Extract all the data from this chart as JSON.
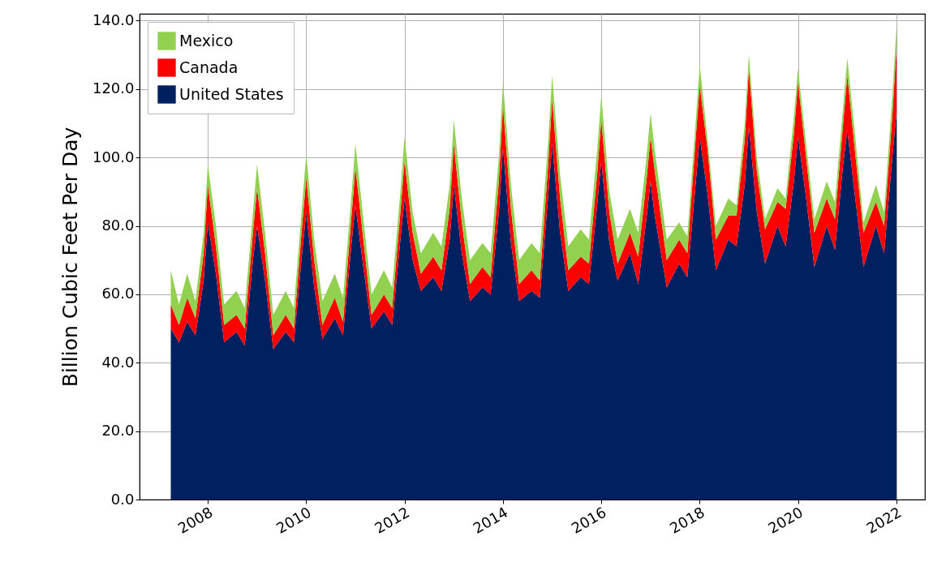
{
  "chart_data": {
    "type": "area",
    "stacked": true,
    "ylabel": "Billion Cubic Feet Per Day",
    "x": [
      "2007-04",
      "2007-06",
      "2007-08",
      "2007-10",
      "2007-12",
      "2008-01",
      "2008-03",
      "2008-05",
      "2008-08",
      "2008-10",
      "2008-12",
      "2009-01",
      "2009-03",
      "2009-05",
      "2009-08",
      "2009-10",
      "2009-12",
      "2010-01",
      "2010-03",
      "2010-05",
      "2010-08",
      "2010-10",
      "2010-12",
      "2011-01",
      "2011-03",
      "2011-05",
      "2011-08",
      "2011-10",
      "2011-12",
      "2012-01",
      "2012-03",
      "2012-05",
      "2012-08",
      "2012-10",
      "2012-12",
      "2013-01",
      "2013-03",
      "2013-05",
      "2013-08",
      "2013-10",
      "2013-12",
      "2014-01",
      "2014-03",
      "2014-05",
      "2014-08",
      "2014-10",
      "2014-12",
      "2015-01",
      "2015-03",
      "2015-05",
      "2015-08",
      "2015-10",
      "2015-12",
      "2016-01",
      "2016-03",
      "2016-05",
      "2016-08",
      "2016-10",
      "2016-12",
      "2017-01",
      "2017-02",
      "2017-05",
      "2017-08",
      "2017-10",
      "2017-12",
      "2018-01",
      "2018-03",
      "2018-05",
      "2018-08",
      "2018-10",
      "2018-12",
      "2019-01",
      "2019-03",
      "2019-05",
      "2019-08",
      "2019-10",
      "2019-12",
      "2020-01",
      "2020-03",
      "2020-05",
      "2020-08",
      "2020-10",
      "2020-12",
      "2021-01",
      "2021-03",
      "2021-05",
      "2021-08",
      "2021-10",
      "2021-12",
      "2022-01"
    ],
    "series": [
      {
        "name": "United States",
        "color": "#002060",
        "values": [
          50,
          46,
          52,
          48,
          64,
          81,
          66,
          46,
          49,
          45,
          70,
          80,
          64,
          44,
          49,
          46,
          72,
          84,
          62,
          47,
          53,
          48,
          74,
          86,
          68,
          50,
          55,
          51,
          76,
          88,
          70,
          61,
          65,
          61,
          76,
          92,
          72,
          58,
          62,
          60,
          84,
          103,
          75,
          58,
          61,
          59,
          88,
          104,
          78,
          61,
          65,
          63,
          86,
          99,
          75,
          64,
          72,
          63,
          82,
          93,
          83,
          62,
          69,
          65,
          92,
          106,
          89,
          67,
          76,
          74,
          92,
          109,
          84,
          69,
          80,
          74,
          93,
          106,
          88,
          68,
          80,
          73,
          98,
          108,
          88,
          68,
          80,
          72,
          100,
          113
        ]
      },
      {
        "name": "Canada",
        "color": "#ff0000",
        "values": [
          7,
          5,
          7,
          5,
          8,
          11,
          8,
          5,
          5,
          5,
          8,
          11,
          8,
          4,
          5,
          4,
          8,
          10,
          8,
          4,
          6,
          4,
          8,
          11,
          8,
          4,
          5,
          5,
          8,
          11,
          8,
          5,
          6,
          6,
          9,
          12,
          9,
          5,
          6,
          5,
          9,
          12,
          10,
          5,
          6,
          5,
          9,
          13,
          10,
          6,
          6,
          6,
          9,
          12,
          9,
          5,
          6,
          8,
          11,
          13,
          13,
          8,
          7,
          7,
          13,
          15,
          13,
          9,
          7,
          9,
          13,
          17,
          12,
          10,
          7,
          11,
          14,
          16,
          12,
          10,
          8,
          9,
          12,
          16,
          13,
          10,
          7,
          8,
          12,
          19
        ]
      },
      {
        "name": "Mexico",
        "color": "#92d050",
        "values": [
          10,
          6,
          7,
          5,
          6,
          6,
          6,
          6,
          7,
          6,
          6,
          7,
          6,
          6,
          7,
          6,
          6,
          7,
          6,
          7,
          7,
          7,
          6,
          7,
          6,
          6,
          7,
          6,
          6,
          7,
          6,
          6,
          7,
          7,
          7,
          7,
          7,
          7,
          7,
          7,
          7,
          7,
          7,
          7,
          8,
          8,
          7,
          7,
          7,
          7,
          8,
          7,
          7,
          7,
          6,
          7,
          7,
          7,
          7,
          7,
          6,
          6,
          5,
          5,
          5,
          6,
          3,
          4,
          5,
          3,
          5,
          4,
          4,
          3,
          4,
          3,
          5,
          4,
          4,
          4,
          5,
          5,
          5,
          5,
          5,
          3,
          5,
          4,
          6,
          6
        ]
      }
    ],
    "xlim": [
      "2006-08-12",
      "2022-07-31"
    ],
    "xticks": [
      "2008",
      "2010",
      "2012",
      "2014",
      "2016",
      "2018",
      "2020",
      "2022"
    ],
    "ylim": [
      0,
      142
    ],
    "yticks": [
      {
        "value": 0,
        "label": "0.0"
      },
      {
        "value": 20,
        "label": "20.0"
      },
      {
        "value": 40,
        "label": "40.0"
      },
      {
        "value": 60,
        "label": "60.0"
      },
      {
        "value": 80,
        "label": "80.0"
      },
      {
        "value": 100,
        "label": "100.0"
      },
      {
        "value": 120,
        "label": "120.0"
      },
      {
        "value": 140,
        "label": "140.0"
      }
    ],
    "grid": true,
    "legend": "top left"
  }
}
